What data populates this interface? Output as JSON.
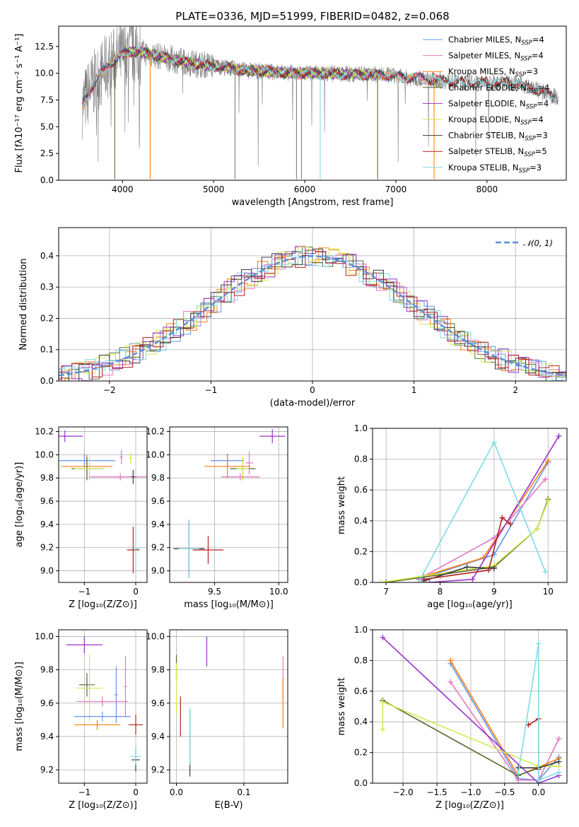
{
  "colors": {
    "chabrier_miles": "#6495ed",
    "salpeter_miles": "#e377c2",
    "kroupa_miles": "#ff7f0e",
    "chabrier_elodie": "#556b2f",
    "salpeter_elodie": "#9932cc",
    "kroupa_elodie": "#d4e84a",
    "chabrier_stelib": "#3a3a3a",
    "salpeter_stelib": "#b22222",
    "kroupa_stelib": "#7fdbe6",
    "gauss": "#5b8fd6",
    "data_gray": "#7f7f7f"
  },
  "chart_data": [
    {
      "id": "spectrum",
      "type": "line",
      "title": "PLATE=0336, MJD=51999, FIBERID=0482, z=0.068",
      "xlabel": "wavelength [Angstrom, rest frame]",
      "ylabel": "Flux [fλ10⁻¹⁷ erg cm⁻² s⁻¹ A⁻¹]",
      "xlim": [
        3300,
        8870
      ],
      "ylim": [
        0,
        14.4
      ],
      "xticks": [
        4000,
        5000,
        6000,
        7000,
        8000
      ],
      "yticks": [
        0.0,
        2.5,
        5.0,
        7.5,
        10.0,
        12.5
      ],
      "grid": false,
      "legend_position": "top-right",
      "legend": [
        {
          "label": "Chabrier MILES, N",
          "sub": "SSP",
          "suffix": "=4",
          "color_key": "chabrier_miles"
        },
        {
          "label": "Salpeter MILES, N",
          "sub": "SSP",
          "suffix": "=4",
          "color_key": "salpeter_miles"
        },
        {
          "label": "Kroupa MILES, N",
          "sub": "SSP",
          "suffix": "=3",
          "color_key": "kroupa_miles"
        },
        {
          "label": "Chabrier ELODIE, N",
          "sub": "SSP",
          "suffix": "=4",
          "color_key": "chabrier_elodie"
        },
        {
          "label": "Salpeter ELODIE, N",
          "sub": "SSP",
          "suffix": "=4",
          "color_key": "salpeter_elodie"
        },
        {
          "label": "Kroupa ELODIE, N",
          "sub": "SSP",
          "suffix": "=4",
          "color_key": "kroupa_elodie"
        },
        {
          "label": "Chabrier STELIB, N",
          "sub": "SSP",
          "suffix": "=3",
          "color_key": "chabrier_stelib"
        },
        {
          "label": "Salpeter STELIB, N",
          "sub": "SSP",
          "suffix": "=5",
          "color_key": "salpeter_stelib"
        },
        {
          "label": "Kroupa STELIB, N",
          "sub": "SSP",
          "suffix": "=3",
          "color_key": "kroupa_stelib"
        }
      ],
      "continuum": {
        "x": [
          3560,
          3650,
          3750,
          3850,
          3950,
          4050,
          4150,
          4300,
          4500,
          4700,
          4900,
          5100,
          5300,
          5500,
          5700,
          5900,
          6100,
          6300,
          6500,
          6700,
          6900,
          7100,
          7300,
          7500,
          7700,
          7900,
          8100,
          8300,
          8500,
          8700,
          8850
        ],
        "y": [
          7.0,
          8.6,
          9.8,
          10.8,
          11.4,
          12.0,
          12.1,
          11.8,
          11.4,
          11.0,
          10.8,
          10.6,
          10.3,
          10.2,
          10.1,
          10.0,
          10.0,
          10.0,
          9.9,
          9.9,
          9.8,
          9.6,
          9.5,
          9.3,
          9.2,
          9.1,
          9.1,
          9.1,
          8.6,
          7.9,
          7.6
        ]
      },
      "absorption_lines": [
        {
          "x": 3915,
          "y": 0.1,
          "color_key": "chabrier_elodie"
        },
        {
          "x": 4304,
          "y": 0.1,
          "color_key": "kroupa_miles"
        },
        {
          "x": 5235,
          "y": 0.1,
          "color_key": "data_gray"
        },
        {
          "x": 5910,
          "y": 0.1,
          "color_key": "data_gray"
        },
        {
          "x": 5965,
          "y": 0.1,
          "color_key": "data_gray"
        },
        {
          "x": 6170,
          "y": 0.1,
          "color_key": "kroupa_stelib"
        },
        {
          "x": 6800,
          "y": 0.1,
          "color_key": "chabrier_elodie"
        },
        {
          "x": 7420,
          "y": 0.1,
          "color_key": "kroupa_miles"
        }
      ]
    },
    {
      "id": "residuals",
      "type": "line",
      "xlabel": "(data-model)/error",
      "ylabel": "Normed distribution",
      "xlim": [
        -2.5,
        2.5
      ],
      "ylim": [
        0,
        0.49
      ],
      "xticks": [
        -2,
        -1,
        0,
        1,
        2
      ],
      "yticks": [
        0.0,
        0.1,
        0.2,
        0.3,
        0.4
      ],
      "grid": true,
      "legend_position": "top-right",
      "legend_label": "𝒩(0, 1)",
      "bin_width": 0.1
    },
    {
      "id": "age_vs_Z",
      "type": "scatter",
      "xlabel": "Z [log₁₀(Z/Z⊙)]",
      "ylabel": "age  [log₁₀(age/yr)]",
      "xlim": [
        -1.5,
        0.22
      ],
      "ylim": [
        8.9,
        10.24
      ],
      "xticks": [
        -1,
        0
      ],
      "yticks": [
        9.0,
        9.2,
        9.4,
        9.6,
        9.8,
        10.0,
        10.2
      ],
      "grid": true,
      "points": [
        {
          "x": -1.38,
          "y": 10.16,
          "xerr": 0.35,
          "yerr": 0.05,
          "color_key": "salpeter_elodie"
        },
        {
          "x": -1.0,
          "y": 9.95,
          "xerr": 0.6,
          "yerr": 0.06,
          "color_key": "chabrier_miles"
        },
        {
          "x": -0.28,
          "y": 9.98,
          "xerr": 0.03,
          "yerr": 0.06,
          "color_key": "salpeter_miles"
        },
        {
          "x": -0.1,
          "y": 9.97,
          "xerr": 0.03,
          "yerr": 0.05,
          "color_key": "kroupa_elodie"
        },
        {
          "x": -0.95,
          "y": 9.9,
          "xerr": 0.5,
          "yerr": 0.1,
          "color_key": "kroupa_miles"
        },
        {
          "x": -0.95,
          "y": 9.88,
          "xerr": 0.3,
          "yerr": 0.1,
          "color_key": "chabrier_elodie"
        },
        {
          "x": -0.9,
          "y": 9.88,
          "xerr": 0.3,
          "yerr": 0.1,
          "color_key": "kroupa_elodie"
        },
        {
          "x": -0.3,
          "y": 9.81,
          "xerr": 0.6,
          "yerr": 0.03,
          "color_key": "salpeter_miles"
        },
        {
          "x": -0.05,
          "y": 9.81,
          "xerr": 0.04,
          "yerr": 0.06,
          "color_key": "chabrier_stelib"
        },
        {
          "x": -0.05,
          "y": 9.18,
          "xerr": 0.12,
          "yerr": 0.2,
          "color_key": "salpeter_stelib"
        },
        {
          "x": 0.0,
          "y": 9.19,
          "xerr": 0.08,
          "yerr": 0.22,
          "color_key": "kroupa_stelib"
        }
      ]
    },
    {
      "id": "age_vs_mass",
      "type": "scatter",
      "xlabel": "mass [log₁₀(M/M⊙)]",
      "ylabel": "",
      "xlim": [
        9.15,
        10.07
      ],
      "ylim": [
        8.9,
        10.24
      ],
      "xticks": [
        9.5,
        10.0
      ],
      "yticks": [
        9.0,
        9.2,
        9.4,
        9.6,
        9.8,
        10.0,
        10.2
      ],
      "grid": true,
      "points": [
        {
          "x": 9.95,
          "y": 10.16,
          "xerr": 0.1,
          "yerr": 0.06,
          "color_key": "salpeter_elodie"
        },
        {
          "x": 9.6,
          "y": 9.95,
          "xerr": 0.13,
          "yerr": 0.06,
          "color_key": "chabrier_miles"
        },
        {
          "x": 9.77,
          "y": 9.93,
          "xerr": 0.03,
          "yerr": 0.1,
          "color_key": "salpeter_miles"
        },
        {
          "x": 9.6,
          "y": 9.9,
          "xerr": 0.18,
          "yerr": 0.1,
          "color_key": "kroupa_miles"
        },
        {
          "x": 9.72,
          "y": 9.88,
          "xerr": 0.1,
          "yerr": 0.1,
          "color_key": "chabrier_elodie"
        },
        {
          "x": 9.72,
          "y": 9.88,
          "xerr": 0.05,
          "yerr": 0.1,
          "color_key": "kroupa_elodie"
        },
        {
          "x": 9.7,
          "y": 9.81,
          "xerr": 0.15,
          "yerr": 0.03,
          "color_key": "salpeter_miles"
        },
        {
          "x": 9.3,
          "y": 9.19,
          "xerr": 0.12,
          "yerr": 0.25,
          "color_key": "chabrier_stelib"
        },
        {
          "x": 9.45,
          "y": 9.18,
          "xerr": 0.12,
          "yerr": 0.12,
          "color_key": "salpeter_stelib"
        },
        {
          "x": 9.3,
          "y": 9.19,
          "xerr": 0.08,
          "yerr": 0.25,
          "color_key": "kroupa_stelib"
        }
      ]
    },
    {
      "id": "weight_vs_age",
      "type": "line",
      "xlabel": "age  [log₁₀(age/yr)]",
      "ylabel": "mass weight",
      "xlim": [
        6.75,
        10.35
      ],
      "ylim": [
        0,
        1.0
      ],
      "xticks": [
        7,
        8,
        9,
        10
      ],
      "yticks": [
        0.0,
        0.2,
        0.4,
        0.6,
        0.8,
        1.0
      ],
      "grid": true,
      "series": [
        {
          "color_key": "chabrier_miles",
          "x": [
            7.6,
            9.0,
            10.0
          ],
          "y": [
            0.02,
            0.18,
            0.78
          ]
        },
        {
          "color_key": "salpeter_miles",
          "x": [
            7.6,
            9.0,
            9.95
          ],
          "y": [
            0.02,
            0.29,
            0.67
          ]
        },
        {
          "color_key": "kroupa_miles",
          "x": [
            7.7,
            8.8,
            10.0
          ],
          "y": [
            0.04,
            0.16,
            0.79
          ]
        },
        {
          "color_key": "chabrier_elodie",
          "x": [
            7.0,
            9.0,
            9.8,
            10.0
          ],
          "y": [
            0.0,
            0.1,
            0.35,
            0.54
          ]
        },
        {
          "color_key": "salpeter_elodie",
          "x": [
            7.8,
            8.6,
            10.2
          ],
          "y": [
            0.0,
            0.02,
            0.95
          ]
        },
        {
          "color_key": "kroupa_elodie",
          "x": [
            6.9,
            9.0,
            9.8,
            10.0
          ],
          "y": [
            0.0,
            0.11,
            0.35,
            0.53
          ]
        },
        {
          "color_key": "chabrier_stelib",
          "x": [
            7.7,
            8.5,
            9.0
          ],
          "y": [
            0.01,
            0.1,
            0.09
          ]
        },
        {
          "color_key": "salpeter_stelib",
          "x": [
            7.7,
            8.9,
            9.15,
            9.3
          ],
          "y": [
            0.02,
            0.08,
            0.42,
            0.38
          ]
        },
        {
          "color_key": "kroupa_stelib",
          "x": [
            7.6,
            9.0,
            9.95
          ],
          "y": [
            0.0,
            0.91,
            0.07
          ]
        }
      ]
    },
    {
      "id": "mass_vs_Z",
      "type": "scatter",
      "xlabel": "Z [log₁₀(Z/Z⊙)]",
      "ylabel": "mass [log₁₀(M/M⊙)]",
      "xlim": [
        -1.5,
        0.22
      ],
      "ylim": [
        9.12,
        10.04
      ],
      "xticks": [
        -1,
        0
      ],
      "yticks": [
        9.2,
        9.4,
        9.6,
        9.8,
        10.0
      ],
      "grid": true,
      "points": [
        {
          "x": -1.0,
          "y": 9.95,
          "xerr": 0.35,
          "yerr": 0.05,
          "color_key": "salpeter_elodie"
        },
        {
          "x": -0.38,
          "y": 9.65,
          "xerr": 0.03,
          "yerr": 0.17,
          "color_key": "chabrier_miles"
        },
        {
          "x": -0.2,
          "y": 9.7,
          "xerr": 0.03,
          "yerr": 0.18,
          "color_key": "salpeter_miles"
        },
        {
          "x": -0.95,
          "y": 9.71,
          "xerr": 0.15,
          "yerr": 0.07,
          "color_key": "chabrier_elodie"
        },
        {
          "x": -0.9,
          "y": 9.69,
          "xerr": 0.25,
          "yerr": 0.2,
          "color_key": "kroupa_elodie"
        },
        {
          "x": -0.65,
          "y": 9.61,
          "xerr": 0.5,
          "yerr": 0.03,
          "color_key": "salpeter_miles"
        },
        {
          "x": -0.65,
          "y": 9.52,
          "xerr": 0.55,
          "yerr": 0.03,
          "color_key": "chabrier_miles"
        },
        {
          "x": -0.75,
          "y": 9.47,
          "xerr": 0.45,
          "yerr": 0.03,
          "color_key": "kroupa_miles"
        },
        {
          "x": 0.0,
          "y": 9.47,
          "xerr": 0.14,
          "yerr": 0.06,
          "color_key": "salpeter_stelib"
        },
        {
          "x": 0.0,
          "y": 9.26,
          "xerr": 0.08,
          "yerr": 0.07,
          "color_key": "chabrier_stelib"
        },
        {
          "x": 0.0,
          "y": 9.28,
          "xerr": 0.1,
          "yerr": 0.05,
          "color_key": "kroupa_stelib"
        }
      ]
    },
    {
      "id": "mass_vs_ebv",
      "type": "scatter",
      "xlabel": "E(B-V)",
      "ylabel": "",
      "xlim": [
        -0.01,
        0.165
      ],
      "ylim": [
        9.12,
        10.04
      ],
      "xticks": [
        0.0,
        0.1
      ],
      "yticks": [
        9.2,
        9.4,
        9.6,
        9.8,
        10.0
      ],
      "grid": true,
      "points": [
        {
          "x": 0.045,
          "y": 9.91,
          "xerr": 0.0,
          "yerr": 0.09,
          "color_key": "salpeter_elodie"
        },
        {
          "x": 0.158,
          "y": 9.75,
          "xerr": 0.0,
          "yerr": 0.13,
          "color_key": "salpeter_miles"
        },
        {
          "x": 0.0,
          "y": 9.81,
          "xerr": 0.0,
          "yerr": 0.08,
          "color_key": "chabrier_elodie"
        },
        {
          "x": 0.0,
          "y": 9.69,
          "xerr": 0.0,
          "yerr": 0.15,
          "color_key": "kroupa_elodie"
        },
        {
          "x": 0.158,
          "y": 9.6,
          "xerr": 0.0,
          "yerr": 0.15,
          "color_key": "kroupa_miles"
        },
        {
          "x": 0.006,
          "y": 9.52,
          "xerr": 0.0,
          "yerr": 0.12,
          "color_key": "salpeter_stelib"
        },
        {
          "x": 0.02,
          "y": 9.36,
          "xerr": 0.0,
          "yerr": 0.2,
          "color_key": "chabrier_stelib"
        },
        {
          "x": 0.02,
          "y": 9.4,
          "xerr": 0.0,
          "yerr": 0.17,
          "color_key": "kroupa_stelib"
        }
      ]
    },
    {
      "id": "weight_vs_Z",
      "type": "line",
      "xlabel": "Z [log₁₀(Z/Z⊙)]",
      "ylabel": "mass weight",
      "xlim": [
        -2.45,
        0.42
      ],
      "ylim": [
        0,
        1.0
      ],
      "xticks": [
        -2.0,
        -1.5,
        -1.0,
        -0.5,
        0.0
      ],
      "yticks": [
        0.0,
        0.2,
        0.4,
        0.6,
        0.8,
        1.0
      ],
      "grid": true,
      "series": [
        {
          "color_key": "chabrier_miles",
          "x": [
            -1.3,
            -0.3,
            0.0,
            0.3
          ],
          "y": [
            0.78,
            0.03,
            0.02,
            0.17
          ]
        },
        {
          "color_key": "salpeter_miles",
          "x": [
            -1.3,
            -0.3,
            0.0,
            0.3
          ],
          "y": [
            0.66,
            0.02,
            0.02,
            0.29
          ]
        },
        {
          "color_key": "kroupa_miles",
          "x": [
            -1.3,
            -0.3,
            0.3
          ],
          "y": [
            0.8,
            0.05,
            0.16
          ]
        },
        {
          "color_key": "chabrier_elodie",
          "x": [
            -2.3,
            -0.3,
            0.0
          ],
          "y": [
            0.54,
            0.05,
            0.1
          ]
        },
        {
          "color_key": "salpeter_elodie",
          "x": [
            -2.3,
            0.0,
            0.3
          ],
          "y": [
            0.95,
            0.0,
            0.05
          ]
        },
        {
          "color_key": "kroupa_elodie",
          "x": [
            -2.3,
            -2.3,
            0.0,
            0.3
          ],
          "y": [
            0.35,
            0.53,
            0.11,
            0.11
          ]
        },
        {
          "color_key": "chabrier_stelib",
          "x": [
            -0.3,
            0.0,
            0.3
          ],
          "y": [
            0.1,
            0.1,
            0.14
          ]
        },
        {
          "color_key": "salpeter_stelib",
          "x": [
            -0.15,
            0.0,
            0.0,
            0.0
          ],
          "y": [
            0.38,
            0.42,
            0.09,
            0.0
          ]
        },
        {
          "color_key": "kroupa_stelib",
          "x": [
            -0.3,
            0.0,
            0.0,
            0.3
          ],
          "y": [
            0.06,
            0.91,
            0.02,
            0.07
          ]
        }
      ]
    }
  ]
}
